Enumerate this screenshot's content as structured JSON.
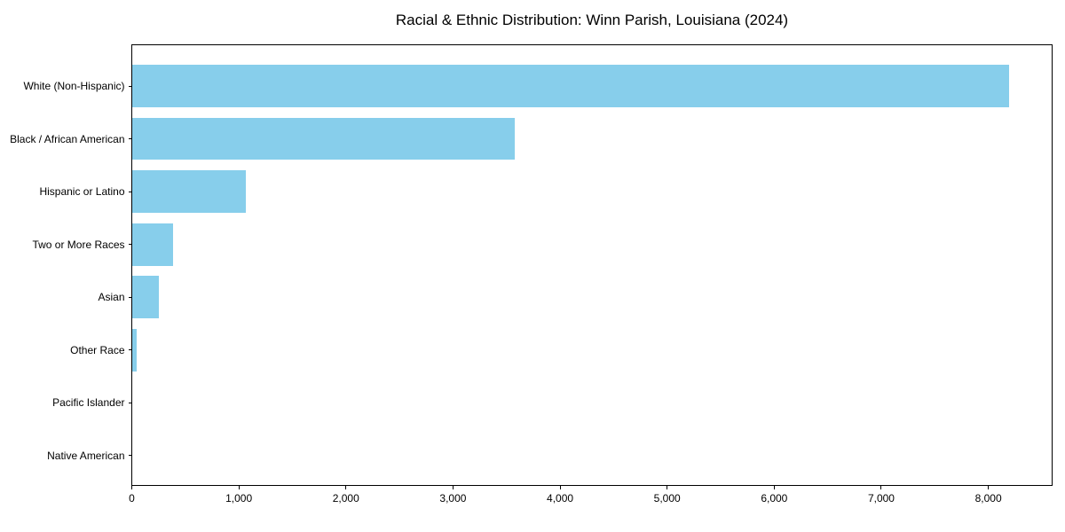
{
  "title": "Racial & Ethnic Distribution: Winn Parish, Louisiana (2024)",
  "chart_data": {
    "type": "bar",
    "orientation": "horizontal",
    "title": "Racial & Ethnic Distribution: Winn Parish, Louisiana (2024)",
    "categories": [
      "White (Non-Hispanic)",
      "Black / African American",
      "Hispanic or Latino",
      "Two or More Races",
      "Asian",
      "Other Race",
      "Pacific Islander",
      "Native American"
    ],
    "values": [
      8190,
      3575,
      1060,
      380,
      245,
      40,
      0,
      0
    ],
    "xlabel": "",
    "ylabel": "",
    "xlim": [
      0,
      8600
    ],
    "x_ticks": [
      0,
      1000,
      2000,
      3000,
      4000,
      5000,
      6000,
      7000,
      8000
    ],
    "x_tick_labels": [
      "0",
      "1,000",
      "2,000",
      "3,000",
      "4,000",
      "5,000",
      "6,000",
      "7,000",
      "8,000"
    ],
    "grid": false,
    "legend": null,
    "bar_color": "#87CEEB",
    "background_color": "#ffffff",
    "spine_color": "#000000"
  }
}
